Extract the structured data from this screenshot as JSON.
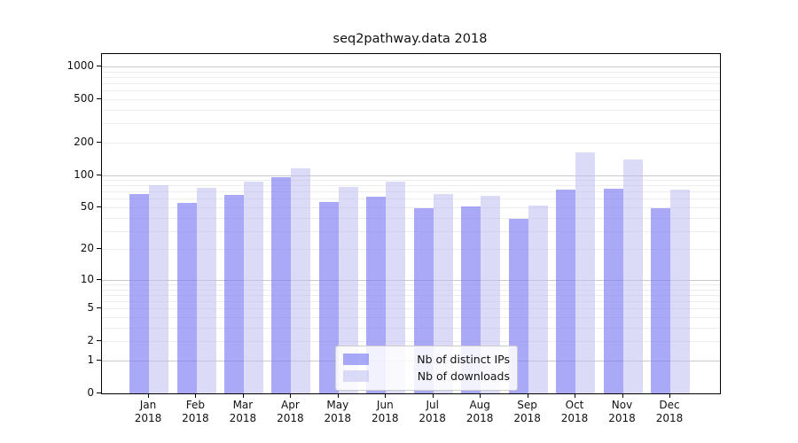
{
  "chart_data": {
    "type": "bar",
    "title": "seq2pathway.data 2018",
    "categories": [
      "Jan",
      "Feb",
      "Mar",
      "Apr",
      "May",
      "Jun",
      "Jul",
      "Aug",
      "Sep",
      "Oct",
      "Nov",
      "Dec"
    ],
    "year_label": "2018",
    "series": [
      {
        "name": "Nb of distinct IPs",
        "color_hex": "#7b7bf5",
        "alpha": 0.65,
        "values": [
          66,
          55,
          65,
          95,
          56,
          63,
          49,
          51,
          39,
          73,
          75,
          49
        ]
      },
      {
        "name": "Nb of downloads",
        "color_hex": "#bebef2",
        "alpha": 0.55,
        "values": [
          81,
          76,
          86,
          116,
          77,
          86,
          67,
          64,
          52,
          161,
          140,
          73
        ]
      }
    ],
    "xlabel": "",
    "ylabel": "",
    "y_ticks": [
      0,
      1,
      2,
      5,
      10,
      20,
      50,
      100,
      200,
      500,
      1000
    ],
    "ylim": [
      0,
      1300
    ],
    "scale": "log1p",
    "grid": true,
    "legend_position": "bottom-center",
    "colors": {
      "grid_minor": "#ededed",
      "grid_major": "#c9c9c9",
      "axis": "#000000",
      "legend_border": "#cccccc"
    }
  }
}
